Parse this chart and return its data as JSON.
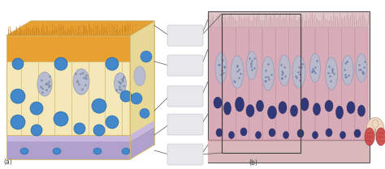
{
  "fig_width": 4.74,
  "fig_height": 2.09,
  "dpi": 100,
  "bg_color": "#ffffff",
  "label_a": "(a)",
  "label_b": "(b)",
  "cilia_color": "#e8a030",
  "cilia_dark": "#c07818",
  "cell_body_color": "#f5e8b8",
  "cell_border_color": "#d4b870",
  "nucleus_large_color": "#b8bcd0",
  "nucleus_blue_color": "#4488cc",
  "nucleus_blue_dark": "#2266aa",
  "basement_color": "#c8b8e0",
  "sub_basement_color": "#b0a0cc",
  "connector_color": "#e8e8ec",
  "connector_border": "#c0c0c8",
  "lines_color": "#505050",
  "panel_b_bg": "#e8d0d0",
  "panel_b_cell": "#c090a8",
  "panel_b_nuc_large": "#c8c8d8",
  "panel_b_nuc_dark": "#303878",
  "panel_b_cilia": "#e8c8c8"
}
